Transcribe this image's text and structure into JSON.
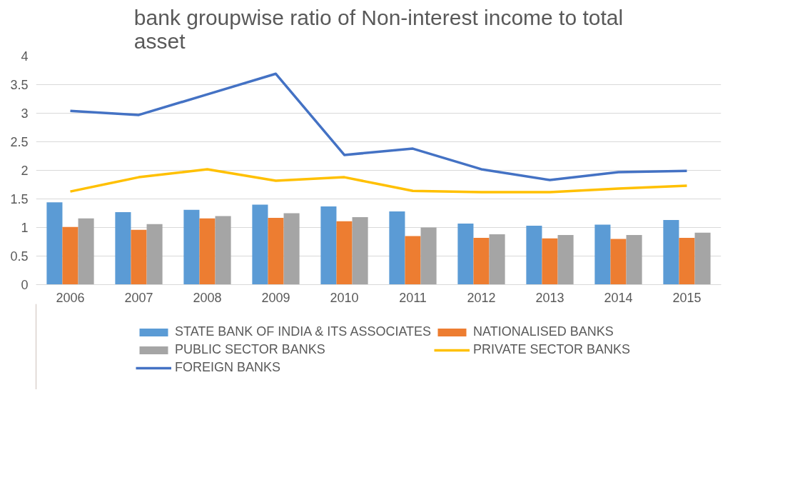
{
  "chart_data": {
    "type": "bar",
    "title": "bank groupwise ratio of Non-interest income to total asset",
    "categories": [
      "2006",
      "2007",
      "2008",
      "2009",
      "2010",
      "2011",
      "2012",
      "2013",
      "2014",
      "2015"
    ],
    "series": [
      {
        "name": "STATE BANK OF INDIA & ITS ASSOCIATES",
        "color": "#5b9bd5",
        "values": [
          1.44,
          1.27,
          1.31,
          1.4,
          1.37,
          1.28,
          1.07,
          1.03,
          1.05,
          1.13
        ]
      },
      {
        "name": "NATIONALISED BANKS",
        "color": "#ed7d31",
        "values": [
          1.01,
          0.96,
          1.16,
          1.17,
          1.11,
          0.85,
          0.82,
          0.81,
          0.8,
          0.82
        ]
      },
      {
        "name": "PUBLIC SECTOR BANKS",
        "color": "#a5a5a5",
        "values": [
          1.16,
          1.06,
          1.2,
          1.25,
          1.18,
          1.0,
          0.88,
          0.87,
          0.87,
          0.91
        ]
      },
      {
        "name": "PRIVATE SECTOR BANKS",
        "type": "line",
        "color": "#ffc000",
        "values": [
          1.63,
          1.88,
          2.02,
          1.82,
          1.88,
          1.64,
          1.62,
          1.62,
          1.68,
          1.73
        ]
      },
      {
        "name": "FOREIGN BANKS",
        "type": "line",
        "color": "#4472c4",
        "values": [
          3.04,
          2.97,
          3.33,
          3.69,
          2.27,
          2.38,
          2.02,
          1.83,
          1.97,
          1.99
        ]
      }
    ],
    "ylim": [
      0,
      4
    ],
    "yticks": [
      0,
      0.5,
      1,
      1.5,
      2,
      2.5,
      3,
      3.5,
      4
    ],
    "grid": "y",
    "legend": "bottom"
  }
}
